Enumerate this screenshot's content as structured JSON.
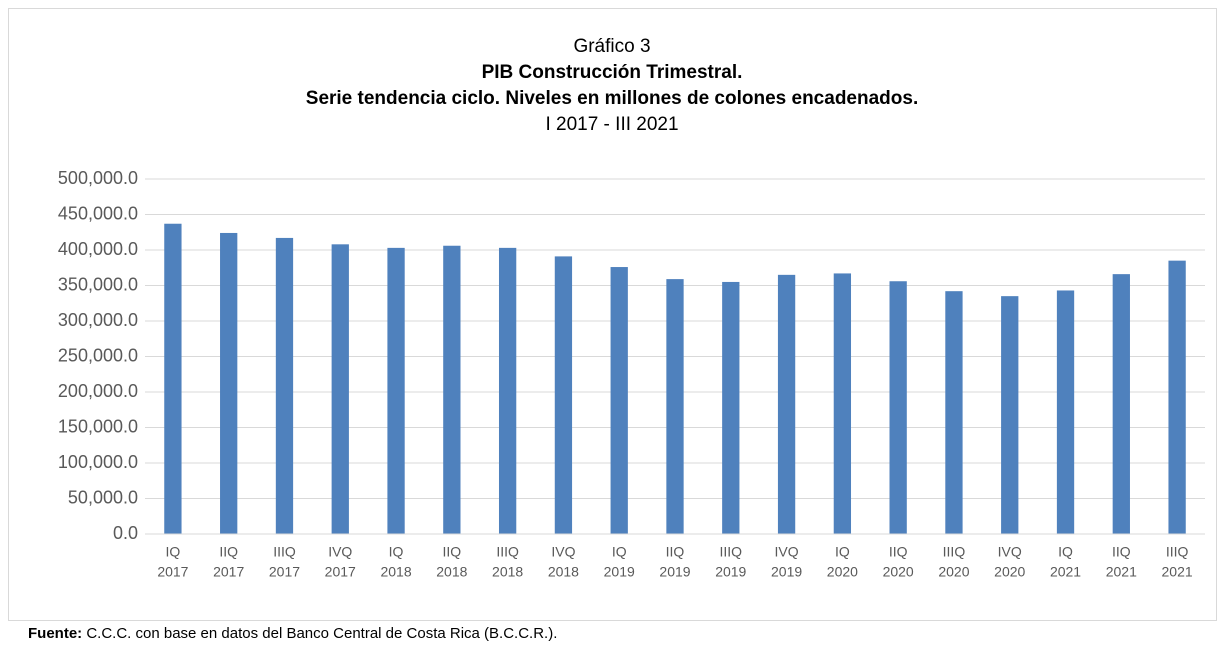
{
  "chart_data": {
    "type": "bar",
    "title": "Gráfico 3",
    "subtitle_lines": [
      "PIB Construcción Trimestral.",
      "Serie tendencia ciclo. Niveles en millones de colones encadenados."
    ],
    "period": "I 2017 - III 2021",
    "categories": [
      [
        "IQ",
        "2017"
      ],
      [
        "IIQ",
        "2017"
      ],
      [
        "IIIQ",
        "2017"
      ],
      [
        "IVQ",
        "2017"
      ],
      [
        "IQ",
        "2018"
      ],
      [
        "IIQ",
        "2018"
      ],
      [
        "IIIQ",
        "2018"
      ],
      [
        "IVQ",
        "2018"
      ],
      [
        "IQ",
        "2019"
      ],
      [
        "IIQ",
        "2019"
      ],
      [
        "IIIQ",
        "2019"
      ],
      [
        "IVQ",
        "2019"
      ],
      [
        "IQ",
        "2020"
      ],
      [
        "IIQ",
        "2020"
      ],
      [
        "IIIQ",
        "2020"
      ],
      [
        "IVQ",
        "2020"
      ],
      [
        "IQ",
        "2021"
      ],
      [
        "IIQ",
        "2021"
      ],
      [
        "IIIQ",
        "2021"
      ]
    ],
    "values": [
      437000,
      424000,
      417000,
      408000,
      403000,
      406000,
      403000,
      391000,
      376000,
      359000,
      355000,
      365000,
      367000,
      356000,
      342000,
      335000,
      343000,
      366000,
      385000
    ],
    "color": "#4f81bd",
    "ylim": [
      0,
      500000
    ],
    "yticks": [
      {
        "value": 0,
        "label": "0.0"
      },
      {
        "value": 50000,
        "label": "50,000.0"
      },
      {
        "value": 100000,
        "label": "100,000.0"
      },
      {
        "value": 150000,
        "label": "150,000.0"
      },
      {
        "value": 200000,
        "label": "200,000.0"
      },
      {
        "value": 250000,
        "label": "250,000.0"
      },
      {
        "value": 300000,
        "label": "300,000.0"
      },
      {
        "value": 350000,
        "label": "350,000.0"
      },
      {
        "value": 400000,
        "label": "400,000.0"
      },
      {
        "value": 450000,
        "label": "450,000.0"
      },
      {
        "value": 500000,
        "label": "500,000.0"
      }
    ],
    "grid": true,
    "source": {
      "label": "Fuente:",
      "text": " C.C.C. con base en datos del Banco Central de Costa Rica (B.C.C.R.)."
    }
  }
}
